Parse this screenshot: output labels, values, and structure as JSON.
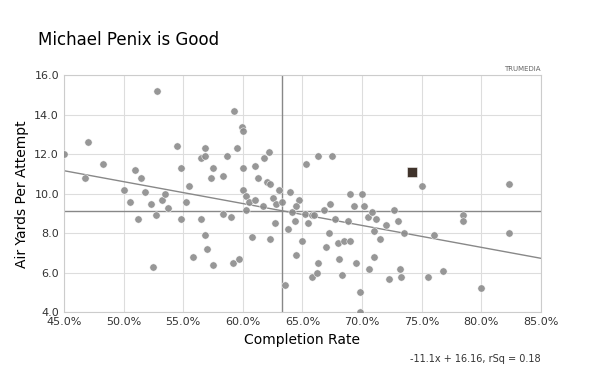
{
  "chart_data": {
    "type": "scatter",
    "title": "Michael Penix is Good",
    "x_label": "Completion Rate",
    "y_label": "Air Yards Per Attempt",
    "watermark": "TRUMEDIA",
    "equation": "-11.1x + 16.16, rSq = 0.18",
    "grid": true,
    "xlim": [
      45,
      85
    ],
    "ylim": [
      4,
      16
    ],
    "xticks": [
      {
        "value": 45,
        "label": "45.0%"
      },
      {
        "value": 50,
        "label": "50.0%"
      },
      {
        "value": 55,
        "label": "55.0%"
      },
      {
        "value": 60,
        "label": "60.0%"
      },
      {
        "value": 65,
        "label": "65.0%"
      },
      {
        "value": 70,
        "label": "70.0%"
      },
      {
        "value": 75,
        "label": "75.0%"
      },
      {
        "value": 80,
        "label": "80.0%"
      },
      {
        "value": 85,
        "label": "85.0%"
      }
    ],
    "yticks": [
      {
        "value": 4,
        "label": "4.0"
      },
      {
        "value": 6,
        "label": "6.0"
      },
      {
        "value": 8,
        "label": "8.0"
      },
      {
        "value": 10,
        "label": "10.0"
      },
      {
        "value": 12,
        "label": "12.0"
      },
      {
        "value": 14,
        "label": "14.0"
      },
      {
        "value": 16,
        "label": "16.0"
      }
    ],
    "reference_lines": {
      "x": 63.3,
      "y": 9.15
    },
    "trend_line": {
      "x": [
        45,
        85
      ],
      "y": [
        11.17,
        6.73
      ]
    },
    "series": [
      {
        "color": "#8c8c8c",
        "marker": "o",
        "x": [
          45.0,
          47.0,
          46.8,
          48.3,
          50.0,
          50.5,
          51.0,
          51.5,
          51.2,
          51.8,
          52.3,
          52.8,
          52.7,
          53.2,
          53.5,
          53.7,
          52.5,
          54.5,
          54.8,
          54.8,
          55.2,
          55.5,
          55.8,
          56.5,
          56.8,
          56.8,
          56.5,
          56.8,
          57.0,
          57.5,
          57.3,
          57.5,
          58.3,
          58.3,
          58.7,
          59.0,
          59.3,
          59.5,
          59.2,
          59.7,
          59.9,
          60.0,
          60.0,
          60.0,
          60.3,
          60.3,
          60.5,
          60.8,
          61.0,
          61.0,
          61.3,
          61.7,
          61.8,
          62.0,
          62.2,
          62.3,
          62.5,
          62.7,
          62.8,
          63.0,
          63.3,
          62.3,
          63.5,
          63.8,
          64.0,
          64.1,
          64.5,
          64.4,
          64.7,
          65.0,
          65.2,
          65.3,
          65.5,
          65.8,
          65.8,
          66.3,
          66.0,
          66.3,
          66.2,
          66.8,
          67.0,
          67.3,
          67.5,
          67.7,
          68.0,
          68.1,
          68.3,
          68.5,
          68.8,
          69.0,
          69.3,
          69.5,
          69.8,
          70.0,
          70.2,
          70.5,
          70.8,
          70.6,
          71.0,
          71.2,
          71.5,
          71.0,
          72.0,
          72.3,
          72.7,
          73.0,
          73.2,
          73.5,
          73.3,
          75.0,
          75.5,
          76.0,
          76.8,
          78.5,
          78.5,
          80.0,
          82.3,
          82.3,
          69.8,
          69.0,
          67.2,
          64.5
        ],
        "y": [
          12.0,
          12.6,
          10.8,
          11.5,
          10.2,
          9.6,
          11.2,
          10.8,
          8.7,
          10.1,
          9.5,
          15.2,
          8.9,
          9.7,
          10.0,
          9.3,
          6.3,
          12.4,
          11.3,
          8.7,
          9.6,
          10.4,
          6.8,
          11.8,
          12.3,
          11.9,
          8.7,
          7.9,
          7.2,
          11.3,
          10.8,
          6.4,
          10.9,
          9.0,
          11.9,
          8.8,
          14.2,
          12.3,
          6.5,
          6.7,
          13.4,
          13.2,
          11.3,
          10.2,
          9.9,
          9.2,
          9.6,
          7.8,
          9.7,
          11.4,
          10.8,
          9.4,
          11.8,
          10.6,
          12.1,
          10.5,
          9.8,
          8.5,
          9.5,
          10.2,
          9.6,
          7.7,
          5.4,
          8.2,
          10.1,
          9.1,
          6.9,
          8.6,
          9.7,
          7.6,
          9.0,
          11.5,
          8.5,
          8.9,
          5.8,
          11.9,
          8.9,
          6.5,
          6.0,
          9.2,
          7.3,
          9.5,
          11.9,
          8.7,
          7.5,
          6.7,
          5.9,
          7.6,
          8.6,
          7.6,
          9.4,
          6.5,
          5.0,
          10.0,
          9.4,
          8.8,
          9.1,
          6.2,
          8.1,
          8.7,
          7.7,
          6.8,
          8.4,
          5.7,
          9.2,
          8.6,
          6.2,
          8.0,
          5.8,
          10.4,
          5.8,
          7.9,
          6.1,
          8.9,
          8.6,
          5.2,
          10.5,
          8.0,
          4.0,
          10.0,
          8.0,
          9.4
        ]
      },
      {
        "color": "#2b1d14",
        "marker": "s",
        "x": [
          74.2
        ],
        "y": [
          11.1
        ]
      }
    ]
  }
}
